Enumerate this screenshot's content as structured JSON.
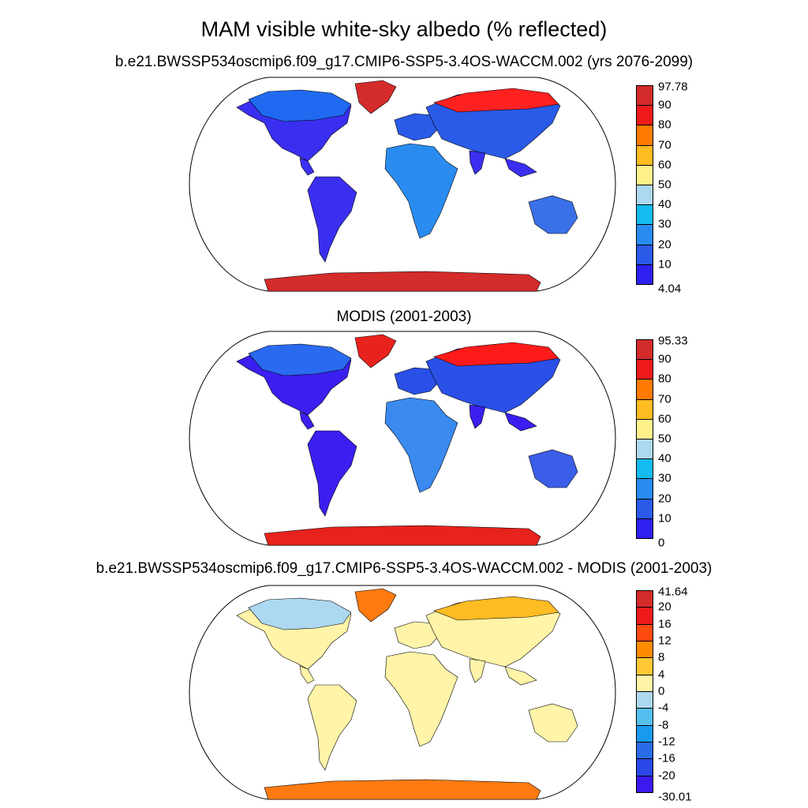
{
  "title": "MAM visible white-sky albedo (% reflected)",
  "panels": [
    {
      "title": "b.e21.BWSSP534oscmip6.f09_g17.CMIP6-SSP5-3.4OS-WACCM.002 (yrs 2076-2099)",
      "colorbar": {
        "labels": [
          "97.78",
          "90",
          "80",
          "70",
          "60",
          "50",
          "40",
          "30",
          "20",
          "10",
          "4.04"
        ],
        "colors": [
          "#d42b2b",
          "#ee1a1a",
          "#ff7a00",
          "#ffbb22",
          "#fff08a",
          "#acd8f0",
          "#14bbee",
          "#2a8cf0",
          "#2a5ae8",
          "#2f1ff0"
        ]
      }
    },
    {
      "title": "MODIS (2001-2003)",
      "colorbar": {
        "labels": [
          "95.33",
          "90",
          "80",
          "70",
          "60",
          "50",
          "40",
          "30",
          "20",
          "10",
          "0"
        ],
        "colors": [
          "#d42b2b",
          "#ee1a1a",
          "#ff7a00",
          "#ffbb22",
          "#fff08a",
          "#acd8f0",
          "#14bbee",
          "#2a8cf0",
          "#2a5ae8",
          "#2f1ff0"
        ]
      }
    },
    {
      "title": "b.e21.BWSSP534oscmip6.f09_g17.CMIP6-SSP5-3.4OS-WACCM.002 - MODIS (2001-2003)",
      "colorbar": {
        "labels": [
          "41.64",
          "20",
          "16",
          "12",
          "8",
          "4",
          "0",
          "-4",
          "-8",
          "-12",
          "-16",
          "-20",
          "-30.01"
        ],
        "colors": [
          "#d42b2b",
          "#ee1a1a",
          "#ff4a10",
          "#ff8a00",
          "#ffc833",
          "#fff4a8",
          "#acd8f0",
          "#55c0f0",
          "#1a9aee",
          "#2a6ce8",
          "#2a48e8",
          "#3a1af0"
        ]
      }
    }
  ]
}
